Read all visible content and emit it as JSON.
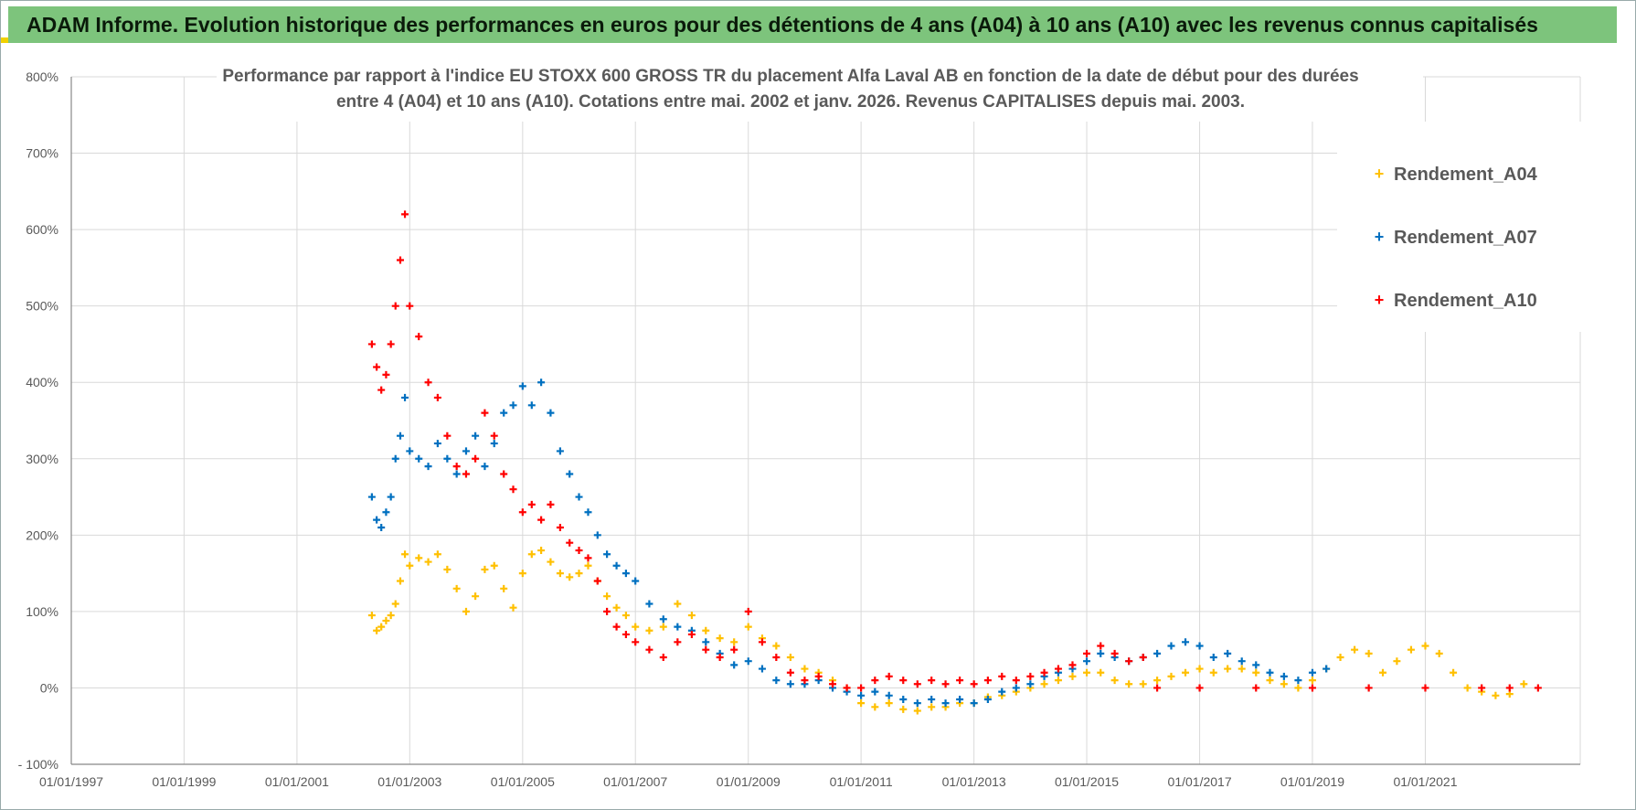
{
  "banner": {
    "title": "ADAM Informe. Evolution historique des performances en euros pour des détentions de 4 ans (A04) à 10 ans (A10) avec les revenus connus capitalisés"
  },
  "colors": {
    "banner_bg": "#7dc47c",
    "A04": "#ffc000",
    "A07": "#0070c0",
    "A10": "#ff0000",
    "grid": "#d9d9d9",
    "text": "#595959"
  },
  "chart_data": {
    "type": "scatter",
    "title_line1": "Performance par rapport à l'indice EU STOXX 600 GROSS TR  du placement Alfa Laval AB en fonction de la date de début pour des durées",
    "title_line2": "entre 4 (A04) et 10 ans (A10). Cotations entre mai. 2002 et janv. 2026. Revenus CAPITALISES depuis mai. 2003.",
    "x_tick_labels": [
      "01/01/1997",
      "01/01/1999",
      "01/01/2001",
      "01/01/2003",
      "01/01/2005",
      "01/01/2007",
      "01/01/2009",
      "01/01/2011",
      "01/01/2013",
      "01/01/2015",
      "01/01/2017",
      "01/01/2019",
      "01/01/2021"
    ],
    "y_tick_labels": [
      "- 100%",
      "0%",
      "100%",
      "200%",
      "300%",
      "400%",
      "500%",
      "600%",
      "700%",
      "800%"
    ],
    "xlim": [
      "1997-01-01",
      "2023-10-01"
    ],
    "ylim": [
      -100,
      800
    ],
    "y_unit": "%",
    "grid": true,
    "legend_position": "top-right",
    "series": [
      {
        "name": "Rendement_A04",
        "points": [
          [
            "2002-05-01",
            95
          ],
          [
            "2002-06-01",
            75
          ],
          [
            "2002-07-01",
            80
          ],
          [
            "2002-08-01",
            88
          ],
          [
            "2002-09-01",
            95
          ],
          [
            "2002-10-01",
            110
          ],
          [
            "2002-11-01",
            140
          ],
          [
            "2002-12-01",
            175
          ],
          [
            "2003-01-01",
            160
          ],
          [
            "2003-03-01",
            170
          ],
          [
            "2003-05-01",
            165
          ],
          [
            "2003-07-01",
            175
          ],
          [
            "2003-09-01",
            155
          ],
          [
            "2003-11-01",
            130
          ],
          [
            "2004-01-01",
            100
          ],
          [
            "2004-03-01",
            120
          ],
          [
            "2004-05-01",
            155
          ],
          [
            "2004-07-01",
            160
          ],
          [
            "2004-09-01",
            130
          ],
          [
            "2004-11-01",
            105
          ],
          [
            "2005-01-01",
            150
          ],
          [
            "2005-03-01",
            175
          ],
          [
            "2005-05-01",
            180
          ],
          [
            "2005-07-01",
            165
          ],
          [
            "2005-09-01",
            150
          ],
          [
            "2005-11-01",
            145
          ],
          [
            "2006-01-01",
            150
          ],
          [
            "2006-03-01",
            160
          ],
          [
            "2006-05-01",
            140
          ],
          [
            "2006-07-01",
            120
          ],
          [
            "2006-09-01",
            105
          ],
          [
            "2006-11-01",
            95
          ],
          [
            "2007-01-01",
            80
          ],
          [
            "2007-04-01",
            75
          ],
          [
            "2007-07-01",
            80
          ],
          [
            "2007-10-01",
            110
          ],
          [
            "2008-01-01",
            95
          ],
          [
            "2008-04-01",
            75
          ],
          [
            "2008-07-01",
            65
          ],
          [
            "2008-10-01",
            60
          ],
          [
            "2009-01-01",
            80
          ],
          [
            "2009-04-01",
            65
          ],
          [
            "2009-07-01",
            55
          ],
          [
            "2009-10-01",
            40
          ],
          [
            "2010-01-01",
            25
          ],
          [
            "2010-04-01",
            20
          ],
          [
            "2010-07-01",
            10
          ],
          [
            "2010-10-01",
            0
          ],
          [
            "2011-01-01",
            -20
          ],
          [
            "2011-04-01",
            -25
          ],
          [
            "2011-07-01",
            -20
          ],
          [
            "2011-10-01",
            -28
          ],
          [
            "2012-01-01",
            -30
          ],
          [
            "2012-04-01",
            -25
          ],
          [
            "2012-07-01",
            -25
          ],
          [
            "2012-10-01",
            -20
          ],
          [
            "2013-01-01",
            -20
          ],
          [
            "2013-04-01",
            -12
          ],
          [
            "2013-07-01",
            -10
          ],
          [
            "2013-10-01",
            -5
          ],
          [
            "2014-01-01",
            0
          ],
          [
            "2014-04-01",
            5
          ],
          [
            "2014-07-01",
            10
          ],
          [
            "2014-10-01",
            15
          ],
          [
            "2015-01-01",
            20
          ],
          [
            "2015-04-01",
            20
          ],
          [
            "2015-07-01",
            10
          ],
          [
            "2015-10-01",
            5
          ],
          [
            "2016-01-01",
            5
          ],
          [
            "2016-04-01",
            10
          ],
          [
            "2016-07-01",
            15
          ],
          [
            "2016-10-01",
            20
          ],
          [
            "2017-01-01",
            25
          ],
          [
            "2017-04-01",
            20
          ],
          [
            "2017-07-01",
            25
          ],
          [
            "2017-10-01",
            25
          ],
          [
            "2018-01-01",
            20
          ],
          [
            "2018-04-01",
            10
          ],
          [
            "2018-07-01",
            5
          ],
          [
            "2018-10-01",
            0
          ],
          [
            "2019-01-01",
            10
          ],
          [
            "2019-04-01",
            25
          ],
          [
            "2019-07-01",
            40
          ],
          [
            "2019-10-01",
            50
          ],
          [
            "2020-01-01",
            45
          ],
          [
            "2020-04-01",
            20
          ],
          [
            "2020-07-01",
            35
          ],
          [
            "2020-10-01",
            50
          ],
          [
            "2021-01-01",
            55
          ],
          [
            "2021-04-01",
            45
          ],
          [
            "2021-07-01",
            20
          ],
          [
            "2021-10-01",
            0
          ],
          [
            "2022-01-01",
            -5
          ],
          [
            "2022-04-01",
            -10
          ],
          [
            "2022-07-01",
            -8
          ],
          [
            "2022-10-01",
            5
          ]
        ]
      },
      {
        "name": "Rendement_A07",
        "points": [
          [
            "2002-05-01",
            250
          ],
          [
            "2002-06-01",
            220
          ],
          [
            "2002-07-01",
            210
          ],
          [
            "2002-08-01",
            230
          ],
          [
            "2002-09-01",
            250
          ],
          [
            "2002-10-01",
            300
          ],
          [
            "2002-11-01",
            330
          ],
          [
            "2002-12-01",
            380
          ],
          [
            "2003-01-01",
            310
          ],
          [
            "2003-03-01",
            300
          ],
          [
            "2003-05-01",
            290
          ],
          [
            "2003-07-01",
            320
          ],
          [
            "2003-09-01",
            300
          ],
          [
            "2003-11-01",
            280
          ],
          [
            "2004-01-01",
            310
          ],
          [
            "2004-03-01",
            330
          ],
          [
            "2004-05-01",
            290
          ],
          [
            "2004-07-01",
            320
          ],
          [
            "2004-09-01",
            360
          ],
          [
            "2004-11-01",
            370
          ],
          [
            "2005-01-01",
            395
          ],
          [
            "2005-03-01",
            370
          ],
          [
            "2005-05-01",
            400
          ],
          [
            "2005-07-01",
            360
          ],
          [
            "2005-09-01",
            310
          ],
          [
            "2005-11-01",
            280
          ],
          [
            "2006-01-01",
            250
          ],
          [
            "2006-03-01",
            230
          ],
          [
            "2006-05-01",
            200
          ],
          [
            "2006-07-01",
            175
          ],
          [
            "2006-09-01",
            160
          ],
          [
            "2006-11-01",
            150
          ],
          [
            "2007-01-01",
            140
          ],
          [
            "2007-04-01",
            110
          ],
          [
            "2007-07-01",
            90
          ],
          [
            "2007-10-01",
            80
          ],
          [
            "2008-01-01",
            75
          ],
          [
            "2008-04-01",
            60
          ],
          [
            "2008-07-01",
            45
          ],
          [
            "2008-10-01",
            30
          ],
          [
            "2009-01-01",
            35
          ],
          [
            "2009-04-01",
            25
          ],
          [
            "2009-07-01",
            10
          ],
          [
            "2009-10-01",
            5
          ],
          [
            "2010-01-01",
            5
          ],
          [
            "2010-04-01",
            10
          ],
          [
            "2010-07-01",
            0
          ],
          [
            "2010-10-01",
            -5
          ],
          [
            "2011-01-01",
            -10
          ],
          [
            "2011-04-01",
            -5
          ],
          [
            "2011-07-01",
            -10
          ],
          [
            "2011-10-01",
            -15
          ],
          [
            "2012-01-01",
            -20
          ],
          [
            "2012-04-01",
            -15
          ],
          [
            "2012-07-01",
            -20
          ],
          [
            "2012-10-01",
            -15
          ],
          [
            "2013-01-01",
            -20
          ],
          [
            "2013-04-01",
            -15
          ],
          [
            "2013-07-01",
            -5
          ],
          [
            "2013-10-01",
            0
          ],
          [
            "2014-01-01",
            5
          ],
          [
            "2014-04-01",
            15
          ],
          [
            "2014-07-01",
            20
          ],
          [
            "2014-10-01",
            25
          ],
          [
            "2015-01-01",
            35
          ],
          [
            "2015-04-01",
            45
          ],
          [
            "2015-07-01",
            40
          ],
          [
            "2015-10-01",
            35
          ],
          [
            "2016-01-01",
            40
          ],
          [
            "2016-04-01",
            45
          ],
          [
            "2016-07-01",
            55
          ],
          [
            "2016-10-01",
            60
          ],
          [
            "2017-01-01",
            55
          ],
          [
            "2017-04-01",
            40
          ],
          [
            "2017-07-01",
            45
          ],
          [
            "2017-10-01",
            35
          ],
          [
            "2018-01-01",
            30
          ],
          [
            "2018-04-01",
            20
          ],
          [
            "2018-07-01",
            15
          ],
          [
            "2018-10-01",
            10
          ],
          [
            "2019-01-01",
            20
          ],
          [
            "2019-04-01",
            25
          ]
        ]
      },
      {
        "name": "Rendement_A10",
        "points": [
          [
            "2002-05-01",
            450
          ],
          [
            "2002-06-01",
            420
          ],
          [
            "2002-07-01",
            390
          ],
          [
            "2002-08-01",
            410
          ],
          [
            "2002-09-01",
            450
          ],
          [
            "2002-10-01",
            500
          ],
          [
            "2002-11-01",
            560
          ],
          [
            "2002-12-01",
            620
          ],
          [
            "2003-01-01",
            500
          ],
          [
            "2003-03-01",
            460
          ],
          [
            "2003-05-01",
            400
          ],
          [
            "2003-07-01",
            380
          ],
          [
            "2003-09-01",
            330
          ],
          [
            "2003-11-01",
            290
          ],
          [
            "2004-01-01",
            280
          ],
          [
            "2004-03-01",
            300
          ],
          [
            "2004-05-01",
            360
          ],
          [
            "2004-07-01",
            330
          ],
          [
            "2004-09-01",
            280
          ],
          [
            "2004-11-01",
            260
          ],
          [
            "2005-01-01",
            230
          ],
          [
            "2005-03-01",
            240
          ],
          [
            "2005-05-01",
            220
          ],
          [
            "2005-07-01",
            240
          ],
          [
            "2005-09-01",
            210
          ],
          [
            "2005-11-01",
            190
          ],
          [
            "2006-01-01",
            180
          ],
          [
            "2006-03-01",
            170
          ],
          [
            "2006-05-01",
            140
          ],
          [
            "2006-07-01",
            100
          ],
          [
            "2006-09-01",
            80
          ],
          [
            "2006-11-01",
            70
          ],
          [
            "2007-01-01",
            60
          ],
          [
            "2007-04-01",
            50
          ],
          [
            "2007-07-01",
            40
          ],
          [
            "2007-10-01",
            60
          ],
          [
            "2008-01-01",
            70
          ],
          [
            "2008-04-01",
            50
          ],
          [
            "2008-07-01",
            40
          ],
          [
            "2008-10-01",
            50
          ],
          [
            "2009-01-01",
            100
          ],
          [
            "2009-04-01",
            60
          ],
          [
            "2009-07-01",
            40
          ],
          [
            "2009-10-01",
            20
          ],
          [
            "2010-01-01",
            10
          ],
          [
            "2010-04-01",
            15
          ],
          [
            "2010-07-01",
            5
          ],
          [
            "2010-10-01",
            0
          ],
          [
            "2011-01-01",
            0
          ],
          [
            "2011-04-01",
            10
          ],
          [
            "2011-07-01",
            15
          ],
          [
            "2011-10-01",
            10
          ],
          [
            "2012-01-01",
            5
          ],
          [
            "2012-04-01",
            10
          ],
          [
            "2012-07-01",
            5
          ],
          [
            "2012-10-01",
            10
          ],
          [
            "2013-01-01",
            5
          ],
          [
            "2013-04-01",
            10
          ],
          [
            "2013-07-01",
            15
          ],
          [
            "2013-10-01",
            10
          ],
          [
            "2014-01-01",
            15
          ],
          [
            "2014-04-01",
            20
          ],
          [
            "2014-07-01",
            25
          ],
          [
            "2014-10-01",
            30
          ],
          [
            "2015-01-01",
            45
          ],
          [
            "2015-04-01",
            55
          ],
          [
            "2015-07-01",
            45
          ],
          [
            "2015-10-01",
            35
          ],
          [
            "2016-01-01",
            40
          ],
          [
            "2016-04-01",
            0
          ],
          [
            "2017-01-01",
            0
          ],
          [
            "2018-01-01",
            0
          ],
          [
            "2019-01-01",
            0
          ],
          [
            "2020-01-01",
            0
          ],
          [
            "2021-01-01",
            0
          ],
          [
            "2022-01-01",
            0
          ],
          [
            "2022-07-01",
            0
          ],
          [
            "2023-01-01",
            0
          ]
        ]
      }
    ]
  }
}
